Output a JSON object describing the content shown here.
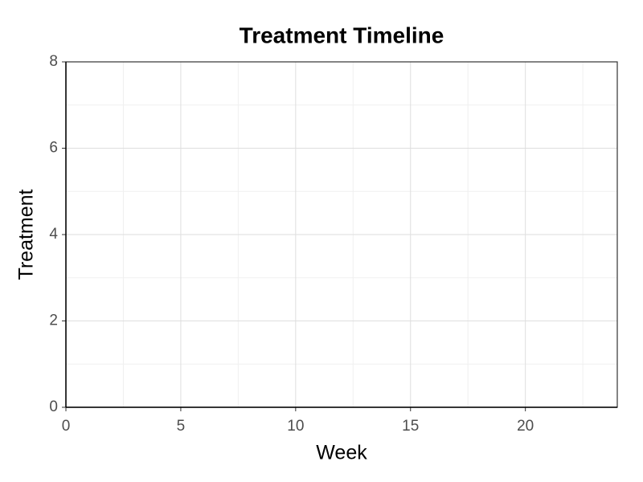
{
  "chart_data": {
    "type": "scatter",
    "title": "Treatment Timeline",
    "x_label": "Week",
    "y_label": "Treatment",
    "xlim": [
      0,
      24
    ],
    "ylim": [
      0,
      8
    ],
    "xticks": [
      0,
      5,
      10,
      15,
      20
    ],
    "yticks": [
      0,
      2,
      4,
      6,
      8
    ],
    "x_minor_grid": [
      2.5,
      7.5,
      12.5,
      17.5,
      22.5
    ],
    "y_minor_grid": [
      1,
      3,
      5,
      7
    ],
    "grid": true
  }
}
